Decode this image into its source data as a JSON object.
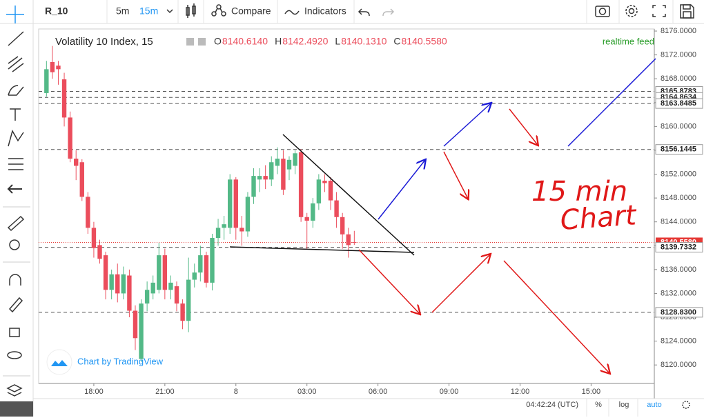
{
  "ui": {
    "symbol": "R_10",
    "intervals": [
      "5m",
      "15m"
    ],
    "compare": "Compare",
    "indicators": "Indicators",
    "chart_title": "Volatility 10 Index, 15",
    "ohlc": [
      {
        "key": "O",
        "text": "8140.6140"
      },
      {
        "key": "H",
        "text": "8142.4920"
      },
      {
        "key": "L",
        "text": "8140.1310"
      },
      {
        "key": "C",
        "text": "8140.5580"
      }
    ],
    "feed": "realtime feed",
    "branding": "Chart by TradingView",
    "clock": "04:42:24 (UTC)",
    "scale_buttons": [
      "%",
      "log",
      "auto"
    ]
  },
  "chart_data": {
    "type": "candlestick",
    "annotation": [
      "15 min",
      "Chart"
    ],
    "up_color": "#53b987",
    "down_color": "#eb4d5c",
    "grid": false,
    "xlim": [
      15.67,
      41.67
    ],
    "xticks": [
      {
        "value": 18,
        "label": "18:00"
      },
      {
        "value": 21,
        "label": "21:00"
      },
      {
        "value": 24,
        "label": "8"
      },
      {
        "value": 27,
        "label": "03:00"
      },
      {
        "value": 30,
        "label": "06:00"
      },
      {
        "value": 33,
        "label": "09:00"
      },
      {
        "value": 36,
        "label": "12:00"
      },
      {
        "value": 39,
        "label": "15:00"
      }
    ],
    "ylim": [
      8116.9,
      8176.35
    ],
    "yticks": [
      {
        "value": 8120,
        "label": "8120.0000"
      },
      {
        "value": 8124,
        "label": "8124.0000"
      },
      {
        "value": 8128,
        "label": "8128.0000"
      },
      {
        "value": 8132,
        "label": "8132.0000"
      },
      {
        "value": 8136,
        "label": "8136.0000"
      },
      {
        "value": 8140,
        "label": "8140.0000"
      },
      {
        "value": 8144,
        "label": "8144.0000"
      },
      {
        "value": 8148,
        "label": "8148.0000"
      },
      {
        "value": 8152,
        "label": "8152.0000"
      },
      {
        "value": 8156,
        "label": "8156.0000"
      },
      {
        "value": 8160,
        "label": "8160.0000"
      },
      {
        "value": 8164,
        "label": "8164.0000"
      },
      {
        "value": 8168,
        "label": "8168.0000"
      },
      {
        "value": 8172,
        "label": "8172.0000"
      },
      {
        "value": 8176,
        "label": "8176.0000"
      }
    ],
    "price_lines": [
      {
        "value": 8165.8783,
        "color": "#555555"
      },
      {
        "value": 8164.8634,
        "color": "#555555"
      },
      {
        "value": 8163.8485,
        "color": "#555555"
      },
      {
        "value": 8156.1445,
        "color": "#555555"
      },
      {
        "value": 8140.558,
        "label": "8140.5580",
        "color": "#e53935"
      },
      {
        "value": 8139.7332,
        "color": "#555555"
      },
      {
        "value": 8128.83,
        "label": "8128.8300",
        "color": "#555555"
      }
    ],
    "x": [
      16,
      16.25,
      16.5,
      16.75,
      17,
      17.25,
      17.5,
      17.75,
      18,
      18.25,
      18.5,
      18.75,
      19,
      19.25,
      19.5,
      19.75,
      20,
      20.25,
      20.5,
      20.75,
      21,
      21.25,
      21.5,
      21.75,
      22,
      22.25,
      22.5,
      22.75,
      23,
      23.25,
      23.5,
      23.75,
      24,
      24.25,
      24.5,
      24.75,
      25,
      25.25,
      25.5,
      25.75,
      26,
      26.25,
      26.5,
      26.75,
      27,
      27.25,
      27.5,
      27.75,
      28,
      28.25,
      28.5,
      28.75,
      29
    ],
    "open": [
      8165.6,
      8170.8,
      8170.2,
      8167.9,
      8161.5,
      8154.6,
      8154,
      8148.2,
      8143,
      8140.1,
      8138.4,
      8132.6,
      8135.2,
      8132,
      8135,
      8129.1,
      8121,
      8130.3,
      8132,
      8132.6,
      8138.4,
      8132.6,
      8133.2,
      8130.3,
      8127.4,
      8134.3,
      8135.5,
      8138.4,
      8133.8,
      8141.3,
      8143,
      8143,
      8151.1,
      8143,
      8142.4,
      8148.2,
      8151.1,
      8151.7,
      8151.1,
      8153.4,
      8154.6,
      8152.8,
      8153.4,
      8155.7,
      8144.8,
      8144.2,
      8147.1,
      8150.9,
      8150.9,
      8147.6,
      8144.8,
      8141.9,
      8140.614
    ],
    "high": [
      8171,
      8173.5,
      8171,
      8169,
      8162.5,
      8156,
      8154.5,
      8149,
      8144,
      8141,
      8139,
      8136,
      8137,
      8136.5,
      8136,
      8130,
      8131,
      8134,
      8135,
      8140.5,
      8139.5,
      8135,
      8134,
      8131,
      8138,
      8137,
      8140,
      8139,
      8142,
      8144.5,
      8145,
      8152,
      8151.5,
      8145,
      8149,
      8153,
      8153,
      8153.5,
      8155,
      8156.5,
      8156,
      8155,
      8156,
      8156.2,
      8145.5,
      8148,
      8152,
      8152,
      8151.5,
      8149,
      8145.5,
      8143,
      8142.492
    ],
    "low": [
      8165,
      8168,
      8167,
      8160,
      8154,
      8151,
      8147.5,
      8142,
      8138,
      8137,
      8131,
      8131,
      8130.5,
      8131,
      8128,
      8122.5,
      8120.5,
      8129,
      8131,
      8132,
      8131,
      8131,
      8129,
      8126,
      8125.5,
      8133,
      8134,
      8133,
      8132.5,
      8140,
      8141,
      8142,
      8141,
      8140,
      8141.5,
      8147,
      8149,
      8149.5,
      8150,
      8152,
      8148.5,
      8151,
      8152,
      8144,
      8139.5,
      8143,
      8146,
      8149,
      8146,
      8143,
      8139.5,
      8138,
      8140.131
    ],
    "close": [
      8169.6,
      8169.1,
      8169.6,
      8161.5,
      8154.6,
      8153.4,
      8148.2,
      8143,
      8139.6,
      8137.8,
      8132.6,
      8135.2,
      8132,
      8135.2,
      8129.1,
      8124.5,
      8130.3,
      8132.6,
      8133.8,
      8138.4,
      8132.6,
      8133.8,
      8130.3,
      8127.4,
      8134.3,
      8135.5,
      8138.4,
      8133.8,
      8141.3,
      8143,
      8143.6,
      8151.1,
      8143,
      8142.4,
      8148.2,
      8151.7,
      8151.7,
      8151.1,
      8154,
      8154.6,
      8149.4,
      8154.4,
      8155.5,
      8144.8,
      8144.2,
      8147.1,
      8151.1,
      8150.5,
      8147.6,
      8144.8,
      8141.9,
      8140.1,
      8140.558
    ]
  }
}
